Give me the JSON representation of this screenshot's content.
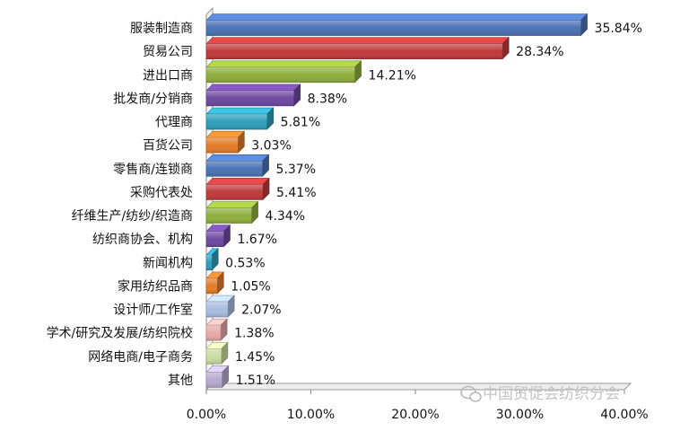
{
  "chart_data": {
    "type": "bar",
    "orientation": "horizontal",
    "categories": [
      "服装制造商",
      "贸易公司",
      "进出口商",
      "批发商/分销商",
      "代理商",
      "百货公司",
      "零售商/连锁商",
      "采购代表处",
      "纤维生产/纺纱/织造商",
      "纺织商协会、机构",
      "新闻机构",
      "家用纺织品商",
      "设计师/工作室",
      "学术/研究及发展/纺织院校",
      "网络电商/电子商务",
      "其他"
    ],
    "values": [
      35.84,
      28.34,
      14.21,
      8.38,
      5.81,
      3.03,
      5.37,
      5.41,
      4.34,
      1.67,
      0.53,
      1.05,
      2.07,
      1.38,
      1.45,
      1.51
    ],
    "value_labels": [
      "35.84%",
      "28.34%",
      "14.21%",
      "8.38%",
      "5.81%",
      "3.03%",
      "5.37%",
      "5.41%",
      "4.34%",
      "1.67%",
      "0.53%",
      "1.05%",
      "2.07%",
      "1.38%",
      "1.45%",
      "1.51%"
    ],
    "colors": [
      "#4a72b5",
      "#c0393b",
      "#8fae3c",
      "#6e48a0",
      "#2e9fbb",
      "#e27c2a",
      "#4a72b5",
      "#c0393b",
      "#8fae3c",
      "#6e48a0",
      "#2e9fbb",
      "#e27c2a",
      "#a9bde0",
      "#e6a9a8",
      "#c9dca0",
      "#b7aad0"
    ],
    "xlim": [
      0,
      40
    ],
    "xticks": [
      "0.00%",
      "10.00%",
      "20.00%",
      "30.00%",
      "40.00%"
    ],
    "title": "",
    "xlabel": "",
    "ylabel": "",
    "grid": false,
    "legend": "none"
  },
  "watermark": "中国贸促会纺织分会"
}
